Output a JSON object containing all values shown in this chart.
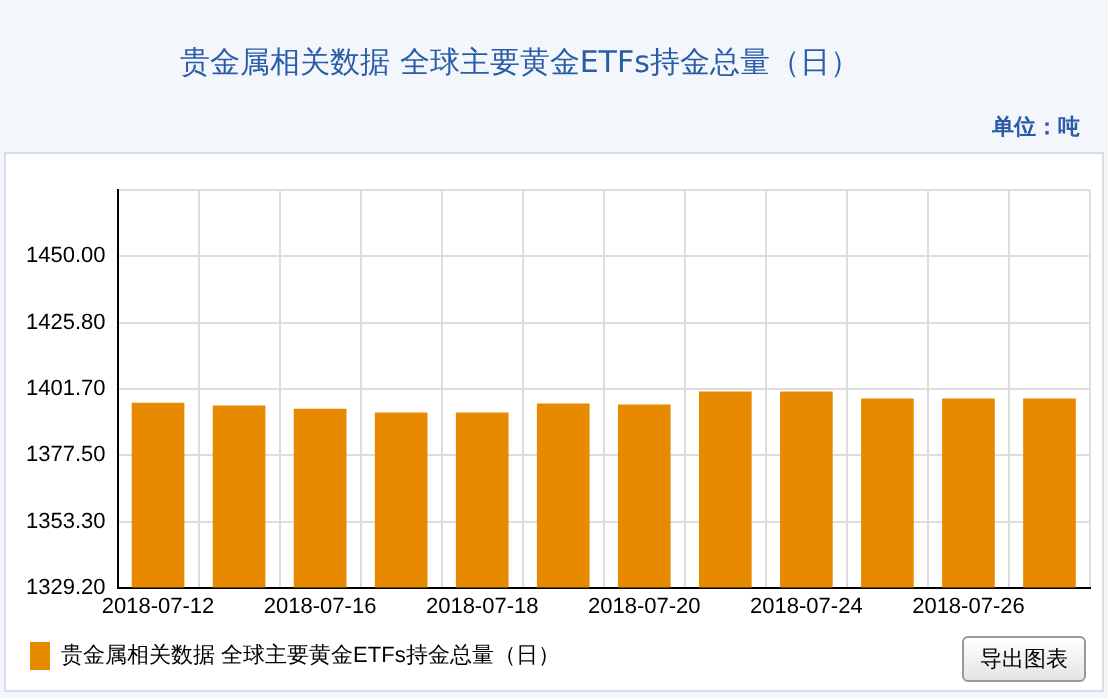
{
  "chart_data": {
    "type": "bar",
    "title": "贵金属相关数据 全球主要黄金ETFs持金总量（日）",
    "ylabel": "单位：吨",
    "categories": [
      "2018-07-12",
      null,
      "2018-07-16",
      null,
      "2018-07-18",
      null,
      "2018-07-20",
      null,
      "2018-07-24",
      null,
      "2018-07-26",
      null
    ],
    "series": [
      {
        "name": "贵金属相关数据 全球主要黄金ETFs持金总量（日）",
        "color": "#e88a00",
        "values": [
          1396.6,
          1395.6,
          1394.4,
          1393.1,
          1393.1,
          1396.3,
          1396.0,
          1400.7,
          1400.7,
          1398.2,
          1398.2,
          1398.2
        ]
      }
    ],
    "ylim": [
      1329.2,
      1474.2
    ],
    "yticks": [
      {
        "value": 1329.2,
        "label": "1329.20"
      },
      {
        "value": 1353.3,
        "label": "1353.30"
      },
      {
        "value": 1377.5,
        "label": "1377.50"
      },
      {
        "value": 1401.7,
        "label": "1401.70"
      },
      {
        "value": 1425.8,
        "label": "1425.80"
      },
      {
        "value": 1450,
        "label": "1450.00"
      },
      {
        "value": 1474.2,
        "label": null
      }
    ],
    "grid": true,
    "legend": "bottom left",
    "annotations": [
      "导出图表"
    ]
  }
}
